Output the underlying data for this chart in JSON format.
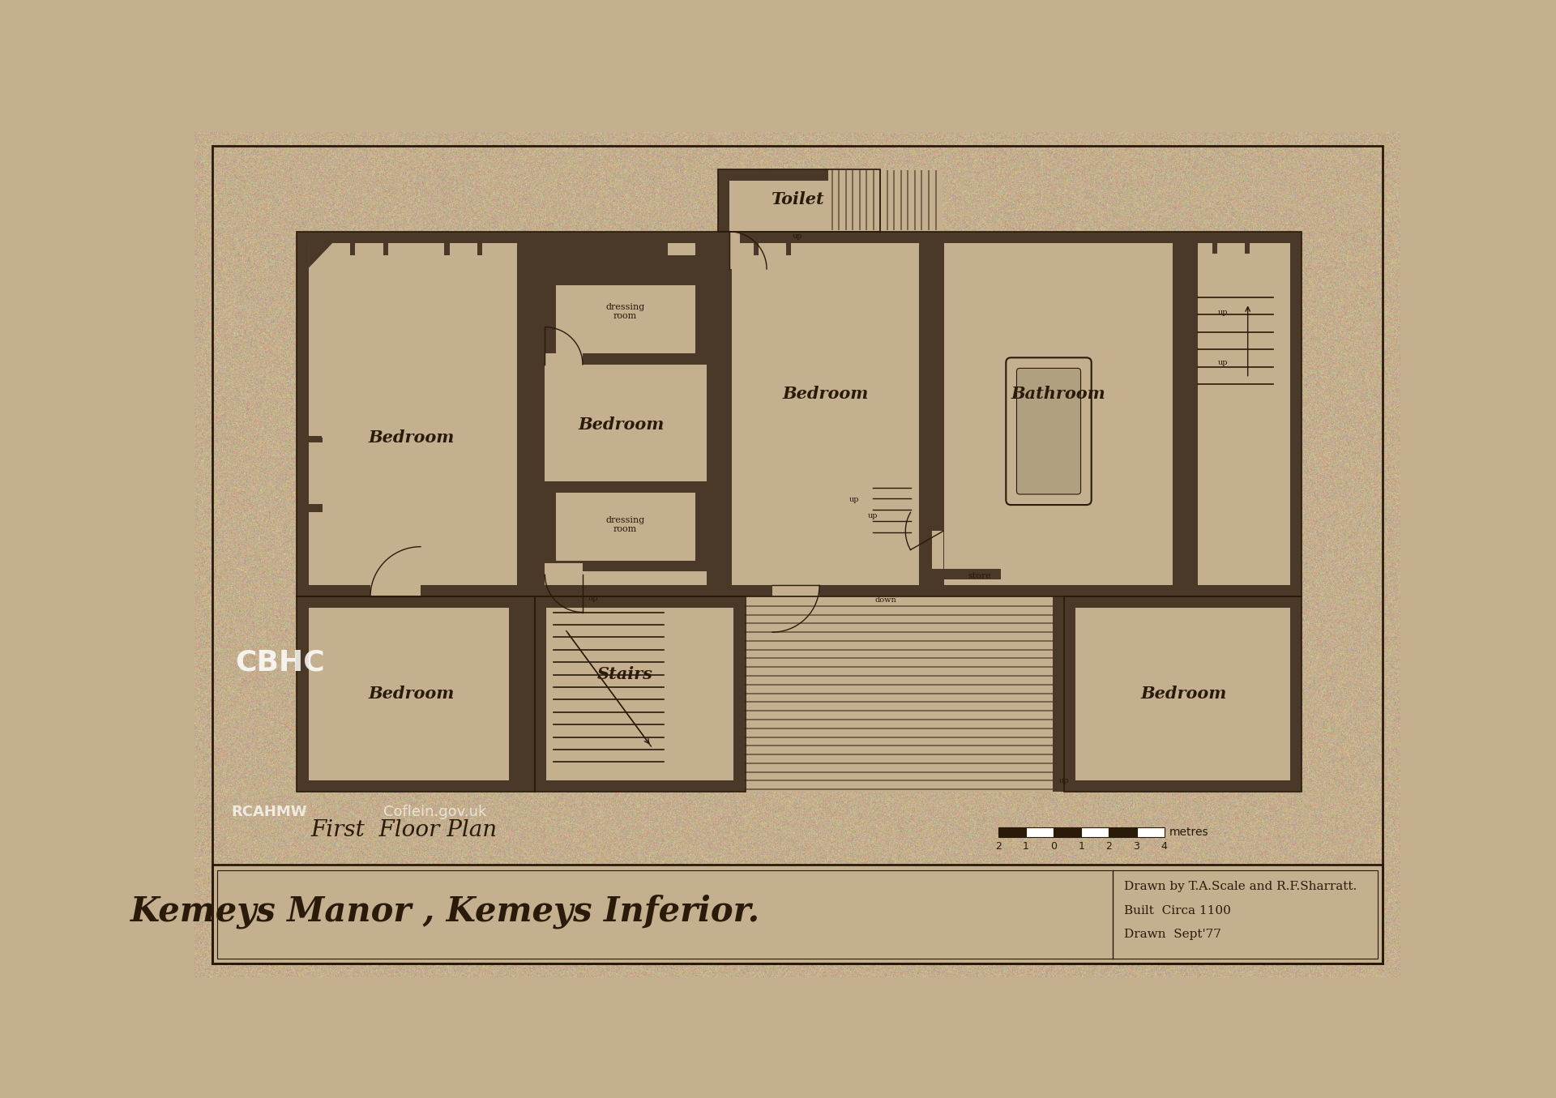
{
  "bg_color": "#c4af8e",
  "wall_color": "#4a3828",
  "floor_color": "#c4af8e",
  "line_color": "#2a1a0a",
  "title_main": "Kemeys Manor , Kemeys Inferior.",
  "title_sub": "First  Floor Plan",
  "drawn_by": "Drawn by T.A.Scale and R.F.Sharratt.",
  "built": "Built  Circa 1100",
  "drawn": "Drawn  Sept'77",
  "scale_label": "metres",
  "scale_nums": [
    "2",
    "1",
    "0",
    "1",
    "2",
    "3",
    "4"
  ]
}
